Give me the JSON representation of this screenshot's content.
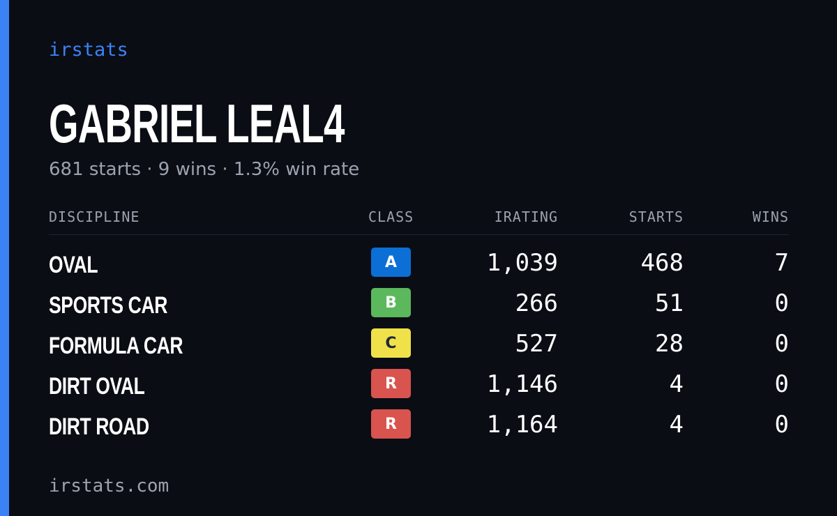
{
  "brand": "irstats",
  "driver": {
    "name": "GABRIEL LEAL4",
    "summary": "681 starts · 9 wins · 1.3% win rate"
  },
  "table": {
    "headers": {
      "discipline": "DISCIPLINE",
      "class": "CLASS",
      "irating": "IRATING",
      "starts": "STARTS",
      "wins": "WINS"
    },
    "rows": [
      {
        "discipline": "OVAL",
        "class": "A",
        "irating": "1,039",
        "starts": "468",
        "wins": "7"
      },
      {
        "discipline": "SPORTS CAR",
        "class": "B",
        "irating": "266",
        "starts": "51",
        "wins": "0"
      },
      {
        "discipline": "FORMULA CAR",
        "class": "C",
        "irating": "527",
        "starts": "28",
        "wins": "0"
      },
      {
        "discipline": "DIRT OVAL",
        "class": "R",
        "irating": "1,146",
        "starts": "4",
        "wins": "0"
      },
      {
        "discipline": "DIRT ROAD",
        "class": "R",
        "irating": "1,164",
        "starts": "4",
        "wins": "0"
      }
    ]
  },
  "class_colors": {
    "A": {
      "bg": "#0b6fd6",
      "fg": "#ffffff"
    },
    "B": {
      "bg": "#5cb85c",
      "fg": "#ffffff"
    },
    "C": {
      "bg": "#f0e14a",
      "fg": "#1f2937"
    },
    "R": {
      "bg": "#d9534f",
      "fg": "#ffffff"
    }
  },
  "colors": {
    "accent": "#3b82f6",
    "background": "#0a0d14",
    "muted_text": "#9ca3af"
  },
  "footer": "irstats.com"
}
